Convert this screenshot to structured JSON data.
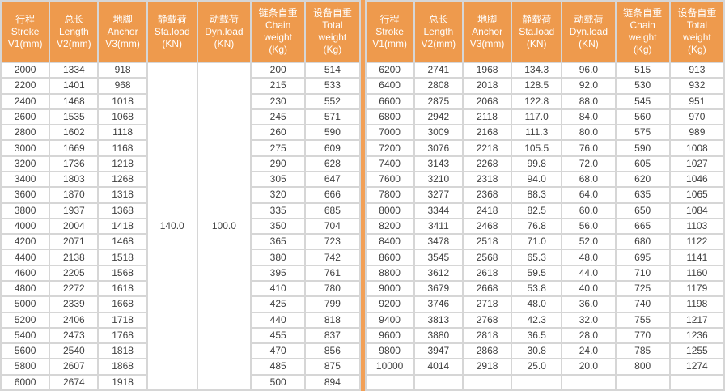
{
  "table": {
    "columns": [
      {
        "key": "stroke",
        "lines": "行程\nStroke\nV1(mm)"
      },
      {
        "key": "length",
        "lines": "总长\nLength\nV2(mm)"
      },
      {
        "key": "anchor",
        "lines": "地脚\nAnchor\nV3(mm)"
      },
      {
        "key": "sta-load",
        "lines": "静载荷\nSta.load\n(KN)"
      },
      {
        "key": "dyn-load",
        "lines": "动载荷\nDyn.load\n(KN)"
      },
      {
        "key": "chain-weight",
        "lines": "链条自重\nChain\nweight\n(Kg)"
      },
      {
        "key": "total-weight",
        "lines": "设备自重\nTotal\nweight\n(Kg)"
      }
    ],
    "left": {
      "sta_load": "140.0",
      "dyn_load": "100.0",
      "rows": [
        [
          "2000",
          "1334",
          "918",
          "200",
          "514"
        ],
        [
          "2200",
          "1401",
          "968",
          "215",
          "533"
        ],
        [
          "2400",
          "1468",
          "1018",
          "230",
          "552"
        ],
        [
          "2600",
          "1535",
          "1068",
          "245",
          "571"
        ],
        [
          "2800",
          "1602",
          "1118",
          "260",
          "590"
        ],
        [
          "3000",
          "1669",
          "1168",
          "275",
          "609"
        ],
        [
          "3200",
          "1736",
          "1218",
          "290",
          "628"
        ],
        [
          "3400",
          "1803",
          "1268",
          "305",
          "647"
        ],
        [
          "3600",
          "1870",
          "1318",
          "320",
          "666"
        ],
        [
          "3800",
          "1937",
          "1368",
          "335",
          "685"
        ],
        [
          "4000",
          "2004",
          "1418",
          "350",
          "704"
        ],
        [
          "4200",
          "2071",
          "1468",
          "365",
          "723"
        ],
        [
          "4400",
          "2138",
          "1518",
          "380",
          "742"
        ],
        [
          "4600",
          "2205",
          "1568",
          "395",
          "761"
        ],
        [
          "4800",
          "2272",
          "1618",
          "410",
          "780"
        ],
        [
          "5000",
          "2339",
          "1668",
          "425",
          "799"
        ],
        [
          "5200",
          "2406",
          "1718",
          "440",
          "818"
        ],
        [
          "5400",
          "2473",
          "1768",
          "455",
          "837"
        ],
        [
          "5600",
          "2540",
          "1818",
          "470",
          "856"
        ],
        [
          "5800",
          "2607",
          "1868",
          "485",
          "875"
        ],
        [
          "6000",
          "2674",
          "1918",
          "500",
          "894"
        ]
      ]
    },
    "right": {
      "rows": [
        [
          "6200",
          "2741",
          "1968",
          "134.3",
          "96.0",
          "515",
          "913"
        ],
        [
          "6400",
          "2808",
          "2018",
          "128.5",
          "92.0",
          "530",
          "932"
        ],
        [
          "6600",
          "2875",
          "2068",
          "122.8",
          "88.0",
          "545",
          "951"
        ],
        [
          "6800",
          "2942",
          "2118",
          "117.0",
          "84.0",
          "560",
          "970"
        ],
        [
          "7000",
          "3009",
          "2168",
          "111.3",
          "80.0",
          "575",
          "989"
        ],
        [
          "7200",
          "3076",
          "2218",
          "105.5",
          "76.0",
          "590",
          "1008"
        ],
        [
          "7400",
          "3143",
          "2268",
          "99.8",
          "72.0",
          "605",
          "1027"
        ],
        [
          "7600",
          "3210",
          "2318",
          "94.0",
          "68.0",
          "620",
          "1046"
        ],
        [
          "7800",
          "3277",
          "2368",
          "88.3",
          "64.0",
          "635",
          "1065"
        ],
        [
          "8000",
          "3344",
          "2418",
          "82.5",
          "60.0",
          "650",
          "1084"
        ],
        [
          "8200",
          "3411",
          "2468",
          "76.8",
          "56.0",
          "665",
          "1103"
        ],
        [
          "8400",
          "3478",
          "2518",
          "71.0",
          "52.0",
          "680",
          "1122"
        ],
        [
          "8600",
          "3545",
          "2568",
          "65.3",
          "48.0",
          "695",
          "1141"
        ],
        [
          "8800",
          "3612",
          "2618",
          "59.5",
          "44.0",
          "710",
          "1160"
        ],
        [
          "9000",
          "3679",
          "2668",
          "53.8",
          "40.0",
          "725",
          "1179"
        ],
        [
          "9200",
          "3746",
          "2718",
          "48.0",
          "36.0",
          "740",
          "1198"
        ],
        [
          "9400",
          "3813",
          "2768",
          "42.3",
          "32.0",
          "755",
          "1217"
        ],
        [
          "9600",
          "3880",
          "2818",
          "36.5",
          "28.0",
          "770",
          "1236"
        ],
        [
          "9800",
          "3947",
          "2868",
          "30.8",
          "24.0",
          "785",
          "1255"
        ],
        [
          "10000",
          "4014",
          "2918",
          "25.0",
          "20.0",
          "800",
          "1274"
        ],
        [
          "",
          "",
          "",
          "",
          "",
          "",
          ""
        ]
      ]
    }
  },
  "colors": {
    "header_bg": "#ee9a4d",
    "header_text": "#ffffff",
    "grid_gap": "#d6d6d6",
    "cell_bg": "#ffffff",
    "cell_text": "#3f3f3f",
    "divider": "#f2a057"
  }
}
